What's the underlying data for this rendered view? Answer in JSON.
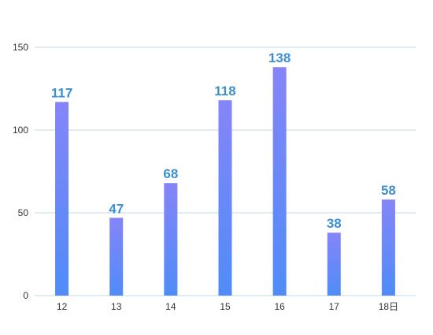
{
  "chart_data": {
    "type": "bar",
    "categories": [
      "12",
      "13",
      "14",
      "15",
      "16",
      "17",
      "18日"
    ],
    "series": [
      {
        "values": [
          117,
          47,
          68,
          118,
          138,
          38,
          58
        ]
      }
    ],
    "ylim": [
      0,
      150
    ],
    "yticks": [
      0,
      50,
      100,
      150
    ],
    "grid": true,
    "legend": "none",
    "show_data_labels": true
  },
  "colors": {
    "bar_top": "#8585f8",
    "bar_bottom": "#4f8cf8",
    "data_label": "#3d8fd1",
    "gridline": "#c5d6e6",
    "axis_text": "#333333"
  }
}
